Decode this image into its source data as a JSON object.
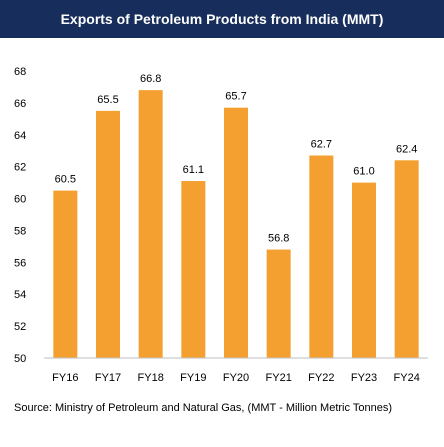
{
  "header": {
    "title": "Exports of Petroleum Products from India (MMT)"
  },
  "footer": {
    "source": "Source: Ministry of Petroleum and Natural Gas, (MMT - Million Metric Tonnes)"
  },
  "colors": {
    "header_bg": "#172d5b",
    "bar": "#f4a030",
    "axis": "#bfbfbf"
  },
  "chart_data": {
    "type": "bar",
    "title": "Exports of Petroleum Products from India (MMT)",
    "categories": [
      "FY16",
      "FY17",
      "FY18",
      "FY19",
      "FY20",
      "FY21",
      "FY22",
      "FY23",
      "FY24"
    ],
    "values": [
      60.5,
      65.5,
      66.8,
      61.1,
      65.7,
      56.8,
      62.7,
      61.0,
      62.4
    ],
    "data_labels": [
      "60.5",
      "65.5",
      "66.8",
      "61.1",
      "65.7",
      "56.8",
      "62.7",
      "61.0",
      "62.4"
    ],
    "ylim": [
      50,
      68
    ],
    "yticks": [
      "50",
      "52",
      "54",
      "56",
      "58",
      "60",
      "62",
      "64",
      "66",
      "68"
    ],
    "grid": false,
    "legend": "none"
  }
}
